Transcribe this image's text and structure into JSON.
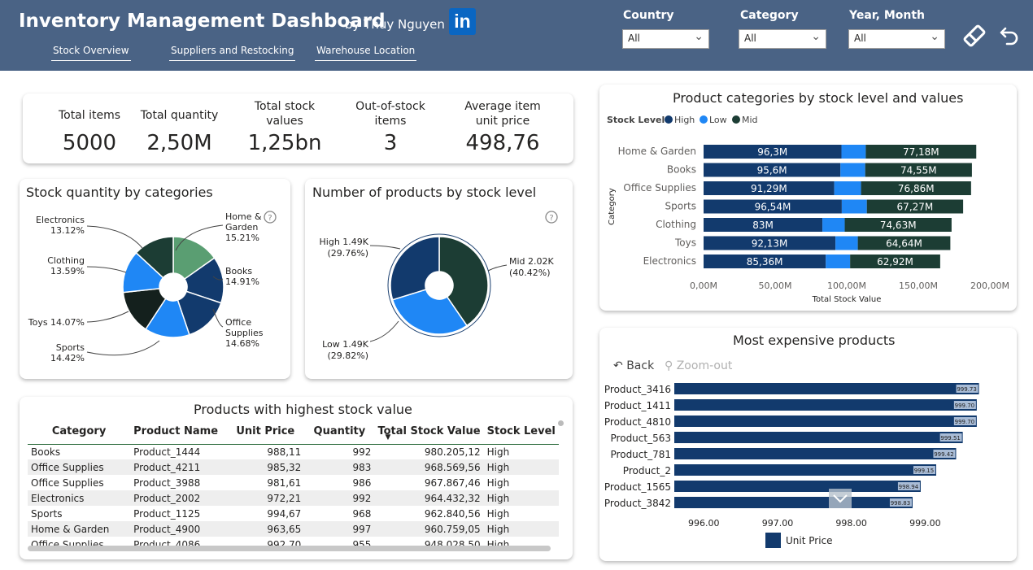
{
  "header": {
    "title": "Inventory Management Dashboard",
    "byline": "by Thuy Nguyen",
    "linkedin": "in",
    "nav": [
      "Stock Overview",
      "Suppliers and Restocking",
      "Warehouse Location"
    ],
    "filters": [
      {
        "label": "Country",
        "value": "All"
      },
      {
        "label": "Category",
        "value": "All"
      },
      {
        "label": "Year, Month",
        "value": "All"
      }
    ],
    "icons": [
      "eraser-icon",
      "undo-icon"
    ]
  },
  "kpis": [
    {
      "label": "Total items",
      "value": "5000"
    },
    {
      "label": "Total quantity",
      "value": "2,50M"
    },
    {
      "label": "Total stock values",
      "value": "1,25bn"
    },
    {
      "label": "Out-of-stock items",
      "value": "3"
    },
    {
      "label": "Average item unit price",
      "value": "498,76"
    }
  ],
  "colors": {
    "header": "#4a6385",
    "navy": "#123a6d",
    "blue": "#1f87f5",
    "dark_green": "#1c3d34",
    "light_green": "#5a9e72",
    "black": "#14201d"
  },
  "chart_data": [
    {
      "type": "pie",
      "title": "Stock quantity by categories",
      "help": "?",
      "categories": [
        "Home & Garden",
        "Books",
        "Office Supplies",
        "Sports",
        "Toys",
        "Clothing",
        "Electronics"
      ],
      "values": [
        15.21,
        14.91,
        14.68,
        14.42,
        14.07,
        13.59,
        13.12
      ],
      "labels": [
        [
          "Home &",
          "Garden",
          "15.21%"
        ],
        [
          "Books",
          "14.91%"
        ],
        [
          "Office",
          "Supplies",
          "14.68%"
        ],
        [
          "Sports",
          "14.42%"
        ],
        [
          "Toys 14.07%"
        ],
        [
          "Clothing",
          "13.59%"
        ],
        [
          "Electronics",
          "13.12%"
        ]
      ]
    },
    {
      "type": "pie",
      "title": "Number of products by stock level",
      "help": "?",
      "categories": [
        "Mid",
        "Low",
        "High"
      ],
      "values": [
        40.42,
        29.82,
        29.76
      ],
      "labels": [
        [
          "Mid 2.02K",
          "(40.42%)"
        ],
        [
          "Low 1.49K",
          "(29.82%)"
        ],
        [
          "High 1.49K",
          "(29.76%)"
        ]
      ]
    },
    {
      "type": "bar",
      "title": "Product categories by stock level and values",
      "legend_title": "Stock Level",
      "legend": [
        "High",
        "Low",
        "Mid"
      ],
      "ylabel": "Category",
      "xlabel": "Total Stock Value",
      "categories": [
        "Home & Garden",
        "Books",
        "Office Supplies",
        "Sports",
        "Clothing",
        "Toys",
        "Electronics"
      ],
      "series": [
        {
          "name": "High",
          "values": [
            96.3,
            95.6,
            91.29,
            96.54,
            83,
            92.13,
            85.36
          ],
          "labels": [
            "96,3M",
            "95,6M",
            "91,29M",
            "96,54M",
            "83M",
            "92,13M",
            "85,36M"
          ]
        },
        {
          "name": "Low",
          "values": [
            17,
            17.3,
            18.7,
            17.5,
            15.6,
            15.6,
            17
          ]
        },
        {
          "name": "Mid",
          "values": [
            77.18,
            74.55,
            76.86,
            67.27,
            74.63,
            64.64,
            62.92
          ],
          "labels": [
            "77,18M",
            "74,55M",
            "76,86M",
            "67,27M",
            "74,63M",
            "64,64M",
            "62,92M"
          ]
        }
      ],
      "xticks": [
        "0,00M",
        "50,00M",
        "100,00M",
        "150,00M",
        "200,00M"
      ],
      "xlim": [
        0,
        200
      ]
    },
    {
      "type": "bar",
      "title": "Most expensive products",
      "back": "Back",
      "zoom": "Zoom-out",
      "categories": [
        "Product_3416",
        "Product_1411",
        "Product_4810",
        "Product_563",
        "Product_781",
        "Product_2",
        "Product_1565",
        "Product_3842"
      ],
      "values": [
        999.73,
        999.7,
        999.7,
        999.51,
        999.42,
        999.15,
        998.94,
        998.83
      ],
      "labels": [
        "999.73",
        "999.70",
        "999.70",
        "999.51",
        "999.42",
        "999.15",
        "998.94",
        "998.83"
      ],
      "xticks": [
        "996.00",
        "997.00",
        "998.00",
        "999.00"
      ],
      "xlim": [
        995.6,
        999.9
      ],
      "legend": "Unit Price"
    }
  ],
  "table": {
    "title": "Products with highest stock value",
    "columns": [
      "Category",
      "Product Name",
      "Unit Price",
      "Quantity",
      "Total Stock Value",
      "Stock Level"
    ],
    "rows": [
      [
        "Books",
        "Product_1444",
        "988,11",
        "992",
        "980.205,12",
        "High"
      ],
      [
        "Office Supplies",
        "Product_4211",
        "985,32",
        "983",
        "968.569,56",
        "High"
      ],
      [
        "Office Supplies",
        "Product_3988",
        "981,61",
        "986",
        "967.867,46",
        "High"
      ],
      [
        "Electronics",
        "Product_2002",
        "972,21",
        "992",
        "964.432,32",
        "High"
      ],
      [
        "Sports",
        "Product_1125",
        "994,67",
        "968",
        "962.840,56",
        "High"
      ],
      [
        "Home & Garden",
        "Product_4900",
        "963,65",
        "997",
        "960.759,05",
        "High"
      ],
      [
        "Office Supplies",
        "Product_4086",
        "992,70",
        "955",
        "948.028,50",
        "High"
      ]
    ]
  }
}
